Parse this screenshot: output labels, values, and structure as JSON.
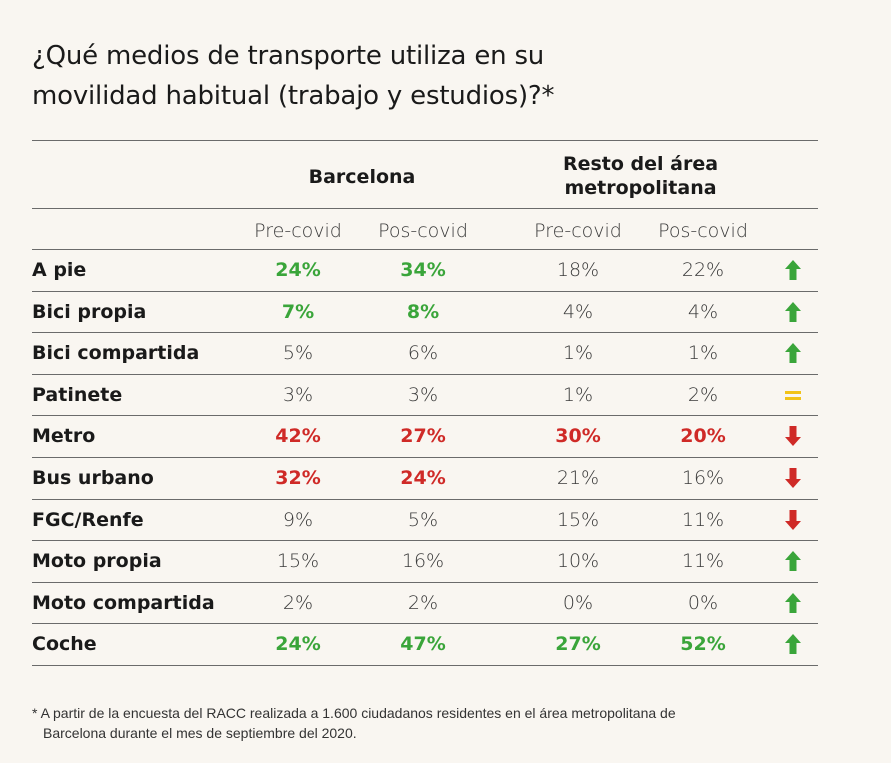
{
  "title": {
    "line1": "¿Qué medios de transporte utiliza en su",
    "line2": "movilidad habitual (trabajo y estudios)?*"
  },
  "groups": {
    "barcelona": "Barcelona",
    "rest_line1": "Resto del área",
    "rest_line2": "metropolitana"
  },
  "columns": [
    "Pre-covid",
    "Pos-covid",
    "Pre-covid",
    "Pos-covid"
  ],
  "colors": {
    "green": "#3aa53a",
    "red": "#cf2a27",
    "yellow": "#f2c318"
  },
  "rows": [
    {
      "label": "A pie",
      "values": [
        "24%",
        "34%",
        "18%",
        "22%"
      ],
      "styles": [
        "green",
        "green",
        "plain",
        "plain"
      ],
      "trend": "up-arrow-icon"
    },
    {
      "label": "Bici propia",
      "values": [
        "7%",
        "8%",
        "4%",
        "4%"
      ],
      "styles": [
        "green",
        "green",
        "plain",
        "plain"
      ],
      "trend": "up-arrow-icon"
    },
    {
      "label": "Bici compartida",
      "values": [
        "5%",
        "6%",
        "1%",
        "1%"
      ],
      "styles": [
        "plain",
        "plain",
        "plain",
        "plain"
      ],
      "trend": "up-arrow-icon"
    },
    {
      "label": "Patinete",
      "values": [
        "3%",
        "3%",
        "1%",
        "2%"
      ],
      "styles": [
        "plain",
        "plain",
        "plain",
        "plain"
      ],
      "trend": "equal-icon"
    },
    {
      "label": "Metro",
      "values": [
        "42%",
        "27%",
        "30%",
        "20%"
      ],
      "styles": [
        "red",
        "red",
        "red",
        "red"
      ],
      "trend": "down-arrow-icon"
    },
    {
      "label": "Bus urbano",
      "values": [
        "32%",
        "24%",
        "21%",
        "16%"
      ],
      "styles": [
        "red",
        "red",
        "plain",
        "plain"
      ],
      "trend": "down-arrow-icon"
    },
    {
      "label": "FGC/Renfe",
      "values": [
        "9%",
        "5%",
        "15%",
        "11%"
      ],
      "styles": [
        "plain",
        "plain",
        "plain",
        "plain"
      ],
      "trend": "down-arrow-icon"
    },
    {
      "label": "Moto propia",
      "values": [
        "15%",
        "16%",
        "10%",
        "11%"
      ],
      "styles": [
        "plain",
        "plain",
        "plain",
        "plain"
      ],
      "trend": "up-arrow-icon"
    },
    {
      "label": "Moto compartida",
      "values": [
        "2%",
        "2%",
        "0%",
        "0%"
      ],
      "styles": [
        "plain",
        "plain",
        "plain",
        "plain"
      ],
      "trend": "up-arrow-icon"
    },
    {
      "label": "Coche",
      "values": [
        "24%",
        "47%",
        "27%",
        "52%"
      ],
      "styles": [
        "green",
        "green",
        "green",
        "green"
      ],
      "trend": "up-arrow-icon"
    }
  ],
  "footnote": {
    "line1": "* A partir de la encuesta del RACC realizada a 1.600 ciudadanos residentes en el área metropolitana de",
    "line2": "Barcelona durante el mes de septiembre del 2020."
  }
}
